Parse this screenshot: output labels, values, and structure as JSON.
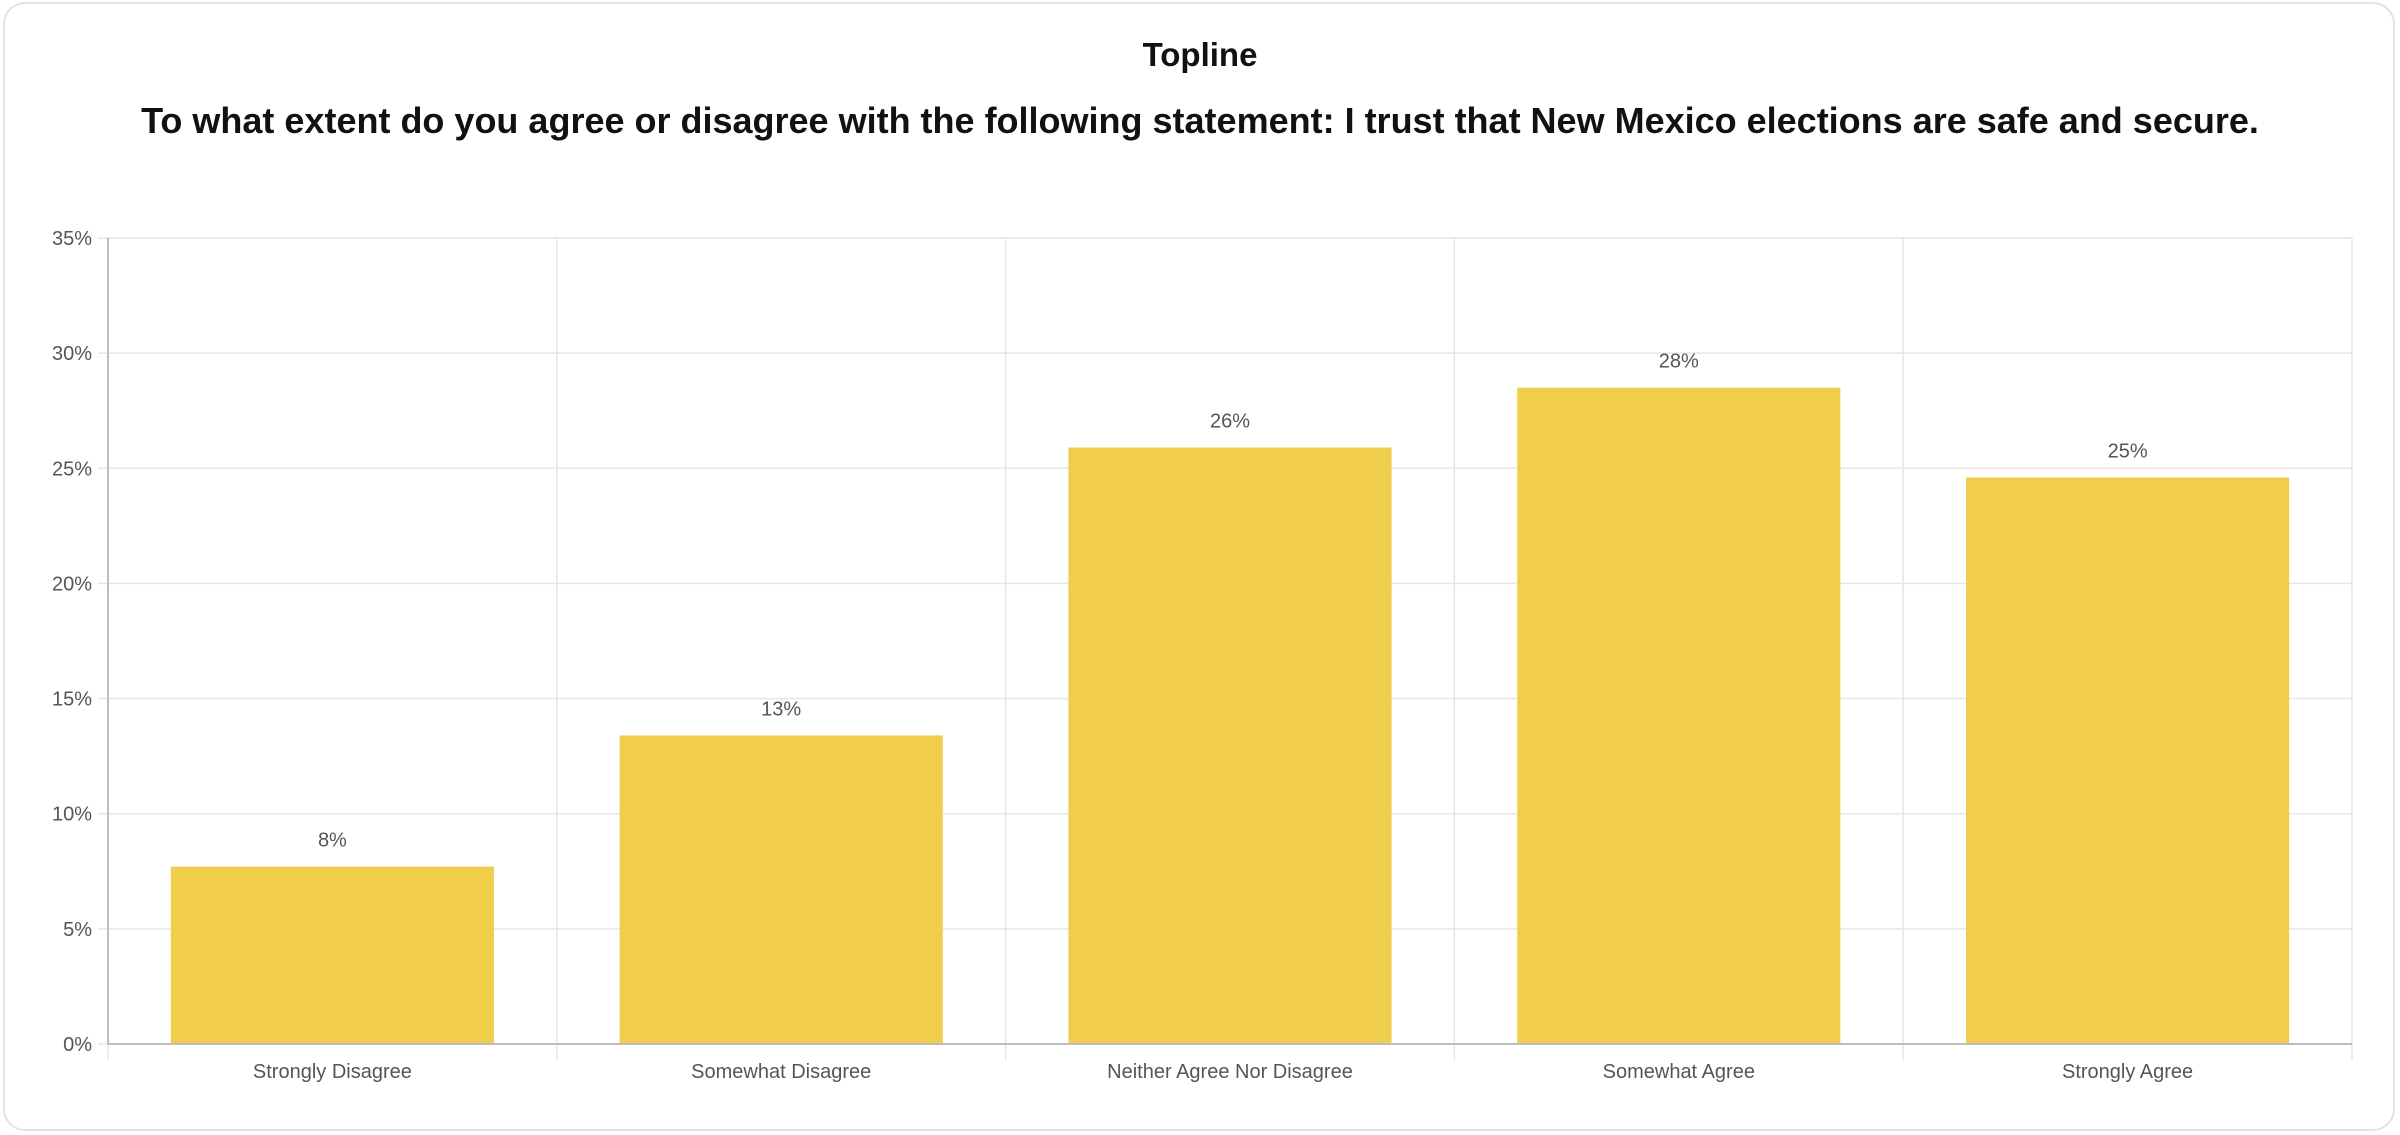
{
  "header": {
    "title": "Topline",
    "subtitle": "To what extent do you agree or disagree with the following statement: I trust that New Mexico elections are safe and secure."
  },
  "colors": {
    "bar": "#f0cd4a",
    "grid": "#e6e6e6",
    "axis": "#bdbdbd",
    "tick_text": "#555555"
  },
  "chart_data": {
    "type": "bar",
    "title": "Topline",
    "subtitle": "To what extent do you agree or disagree with the following statement: I trust that New Mexico elections are safe and secure.",
    "xlabel": "",
    "ylabel": "",
    "categories": [
      "Strongly Disagree",
      "Somewhat Disagree",
      "Neither Agree Nor Disagree",
      "Somewhat Agree",
      "Strongly Agree"
    ],
    "values": [
      7.7,
      13.4,
      25.9,
      28.5,
      24.6
    ],
    "data_labels": [
      "8%",
      "13%",
      "26%",
      "28%",
      "25%"
    ],
    "ylim": [
      0,
      35
    ],
    "y_ticks": [
      0,
      5,
      10,
      15,
      20,
      25,
      30,
      35
    ],
    "y_tick_labels": [
      "0%",
      "5%",
      "10%",
      "15%",
      "20%",
      "25%",
      "30%",
      "35%"
    ],
    "grid": true,
    "legend": "none"
  }
}
